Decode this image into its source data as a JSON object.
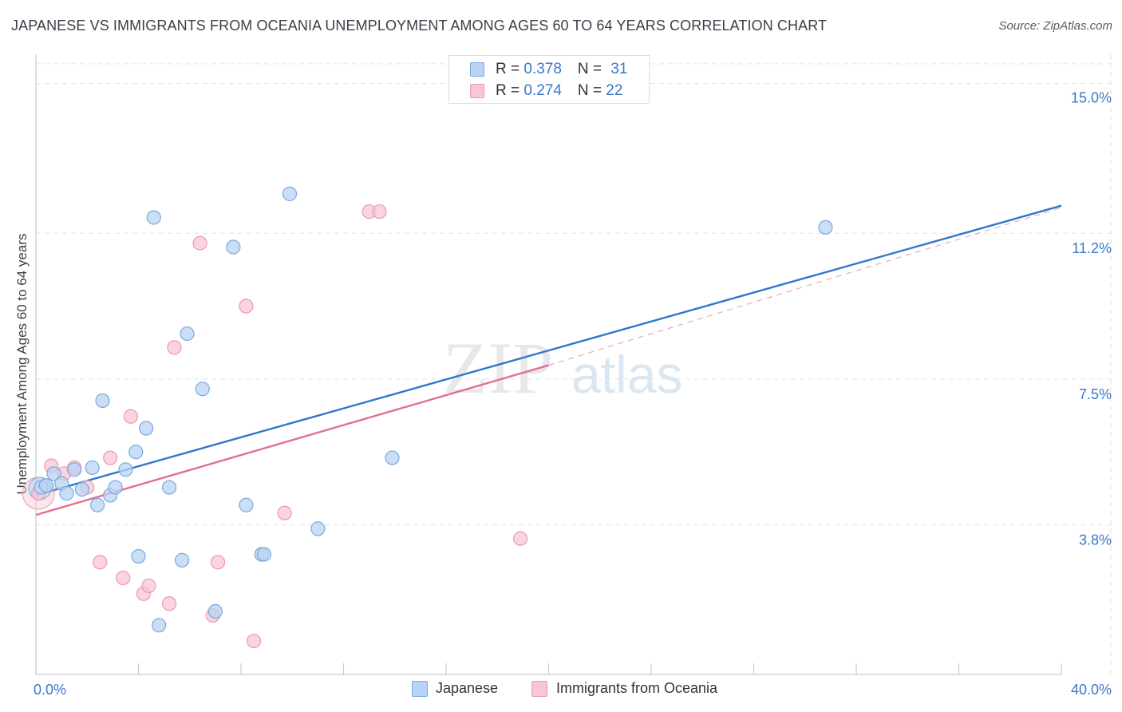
{
  "header": {
    "title": "JAPANESE VS IMMIGRANTS FROM OCEANIA UNEMPLOYMENT AMONG AGES 60 TO 64 YEARS CORRELATION CHART",
    "source": "Source: ZipAtlas.com"
  },
  "legend": {
    "series1": {
      "r_label": "R = ",
      "r_value": "0.378",
      "n_label": "N = ",
      "n_value": "31"
    },
    "series2": {
      "r_label": "R = ",
      "r_value": "0.274",
      "n_label": "N = ",
      "n_value": "22"
    },
    "bottom": {
      "japanese": "Japanese",
      "oceania": "Immigrants from Oceania"
    }
  },
  "watermark": {
    "zip": "ZIP",
    "atlas": "atlas"
  },
  "colors": {
    "japanese_fill": "#b8d3f3",
    "japanese_stroke": "#7aa9e0",
    "japanese_line": "#3077cf",
    "oceania_fill": "#f8c6d4",
    "oceania_stroke": "#ec99b3",
    "oceania_line": "#e06f97",
    "axis_label": "#3a78c9",
    "grid": "#dfe2e6"
  },
  "chart_data": {
    "type": "scatter",
    "title": "JAPANESE VS IMMIGRANTS FROM OCEANIA UNEMPLOYMENT AMONG AGES 60 TO 64 YEARS CORRELATION CHART",
    "xlabel": "",
    "ylabel": "Unemployment Among Ages 60 to 64 years",
    "xlim": [
      0,
      40
    ],
    "ylim": [
      0,
      15.5
    ],
    "x_tick_labels": [
      "0.0%",
      "40.0%"
    ],
    "y_ticks": [
      3.8,
      7.5,
      11.2,
      15.0
    ],
    "y_tick_labels": [
      "3.8%",
      "7.5%",
      "11.2%",
      "15.0%"
    ],
    "x_minor_ticks": [
      0,
      4,
      8,
      12,
      16,
      20,
      24,
      28,
      32,
      36,
      40
    ],
    "grid": true,
    "series": [
      {
        "name": "Japanese",
        "R": 0.378,
        "N": 31,
        "points": [
          [
            0.2,
            4.75
          ],
          [
            0.4,
            4.8
          ],
          [
            0.7,
            5.1
          ],
          [
            1.0,
            4.85
          ],
          [
            1.2,
            4.6
          ],
          [
            1.5,
            5.2
          ],
          [
            1.8,
            4.7
          ],
          [
            2.2,
            5.25
          ],
          [
            2.4,
            4.3
          ],
          [
            2.6,
            6.95
          ],
          [
            2.9,
            4.55
          ],
          [
            3.1,
            4.75
          ],
          [
            3.5,
            5.2
          ],
          [
            3.9,
            5.65
          ],
          [
            4.3,
            6.25
          ],
          [
            4.0,
            3.0
          ],
          [
            4.6,
            11.6
          ],
          [
            4.8,
            1.25
          ],
          [
            5.2,
            4.75
          ],
          [
            5.7,
            2.9
          ],
          [
            5.9,
            8.65
          ],
          [
            6.5,
            7.25
          ],
          [
            7.0,
            1.6
          ],
          [
            7.7,
            10.85
          ],
          [
            8.2,
            4.3
          ],
          [
            8.8,
            3.05
          ],
          [
            8.9,
            3.05
          ],
          [
            9.9,
            12.2
          ],
          [
            11.0,
            3.7
          ],
          [
            13.9,
            5.5
          ],
          [
            30.8,
            11.35
          ]
        ]
      },
      {
        "name": "Immigrants from Oceania",
        "R": 0.274,
        "N": 22,
        "points": [
          [
            0.1,
            4.6
          ],
          [
            0.6,
            5.3
          ],
          [
            1.1,
            5.1
          ],
          [
            1.5,
            5.25
          ],
          [
            2.0,
            4.75
          ],
          [
            2.5,
            2.85
          ],
          [
            2.9,
            5.5
          ],
          [
            3.4,
            2.45
          ],
          [
            3.7,
            6.55
          ],
          [
            4.2,
            2.05
          ],
          [
            4.4,
            2.25
          ],
          [
            5.2,
            1.8
          ],
          [
            5.4,
            8.3
          ],
          [
            6.4,
            10.95
          ],
          [
            6.9,
            1.5
          ],
          [
            7.1,
            2.85
          ],
          [
            8.2,
            9.35
          ],
          [
            8.5,
            0.85
          ],
          [
            9.7,
            4.1
          ],
          [
            13.0,
            11.75
          ],
          [
            13.4,
            11.75
          ],
          [
            18.9,
            3.45
          ]
        ]
      }
    ],
    "trend_lines": [
      {
        "name": "Japanese",
        "x": [
          0,
          40
        ],
        "y": [
          4.55,
          11.9
        ],
        "style": "solid"
      },
      {
        "name": "Immigrants from Oceania",
        "x": [
          0,
          20
        ],
        "y": [
          4.05,
          7.85
        ],
        "style": "solid"
      },
      {
        "name": "Immigrants from Oceania (extended)",
        "x": [
          20,
          40
        ],
        "y": [
          7.85,
          11.85
        ],
        "style": "dashed"
      }
    ]
  }
}
